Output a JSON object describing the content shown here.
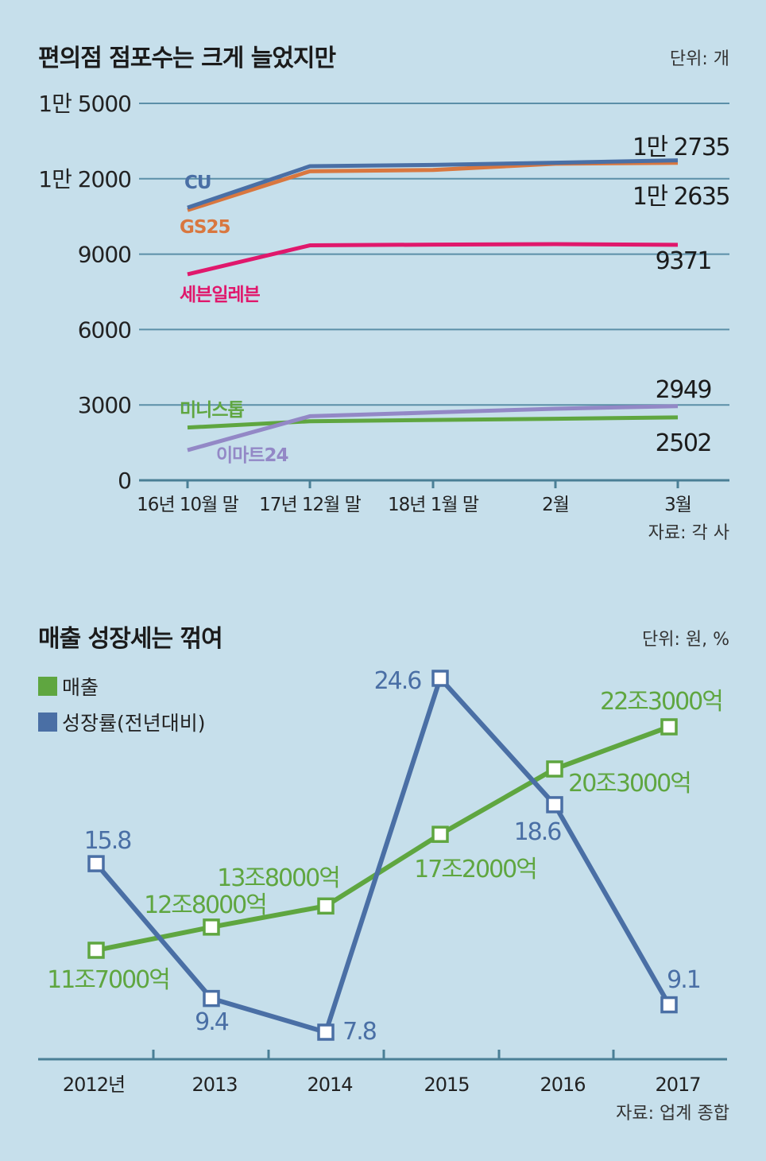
{
  "top_chart": {
    "title": "편의점 점포수는 크게 늘었지만",
    "unit": "단위: 개",
    "source": "자료: 각 사"
  },
  "bottom_chart": {
    "title": "매출 성장세는 꺾여",
    "unit": "단위: 원, %",
    "source": "자료: 업계 종합"
  },
  "chart_data": [
    {
      "type": "line",
      "title": "편의점 점포수는 크게 늘었지만",
      "unit": "단위: 개",
      "categories": [
        "16년 10월 말",
        "17년 12월 말",
        "18년 1월 말",
        "2월",
        "3월"
      ],
      "ylim": [
        0,
        15000
      ],
      "yticks": [
        0,
        3000,
        6000,
        9000,
        12000,
        15000
      ],
      "ytick_labels": [
        "0",
        "3000",
        "6000",
        "9000",
        "1만 2000",
        "1만 5000"
      ],
      "grid": true,
      "series": [
        {
          "name": "CU",
          "color": "#4a6fa5",
          "values": [
            10850,
            12500,
            12550,
            12640,
            12735
          ],
          "end_label": "1만 2735"
        },
        {
          "name": "GS25",
          "color": "#d9773f",
          "values": [
            10750,
            12300,
            12350,
            12600,
            12635
          ],
          "end_label": "1만 2635"
        },
        {
          "name": "세븐일레븐",
          "color": "#e0186c",
          "values": [
            8200,
            9350,
            9380,
            9400,
            9371
          ],
          "end_label": "9371"
        },
        {
          "name": "미니스톱",
          "color": "#5fa640",
          "values": [
            2100,
            2350,
            2400,
            2450,
            2502
          ],
          "end_label": "2502"
        },
        {
          "name": "이마트24",
          "color": "#9388c6",
          "values": [
            1200,
            2550,
            2700,
            2850,
            2949
          ],
          "end_label": "2949"
        }
      ],
      "source": "자료: 각 사"
    },
    {
      "type": "line",
      "title": "매출 성장세는 꺾여",
      "unit": "단위: 원, %",
      "categories": [
        "2012년",
        "2013",
        "2014",
        "2015",
        "2016",
        "2017"
      ],
      "series": [
        {
          "name": "매출",
          "color": "#5fa640",
          "values_trillion_won": [
            11.7,
            12.8,
            13.8,
            17.2,
            20.3,
            22.3
          ],
          "labels": [
            "11조7000억",
            "12조8000억",
            "13조8000억",
            "17조2000억",
            "20조3000억",
            "22조3000억"
          ]
        },
        {
          "name": "성장률(전년대비)",
          "color": "#4a6fa5",
          "values": [
            15.8,
            9.4,
            7.8,
            24.6,
            18.6,
            9.1
          ],
          "labels": [
            "15.8",
            "9.4",
            "7.8",
            "24.6",
            "18.6",
            "9.1"
          ]
        }
      ],
      "source": "자료: 업계 종합"
    }
  ]
}
